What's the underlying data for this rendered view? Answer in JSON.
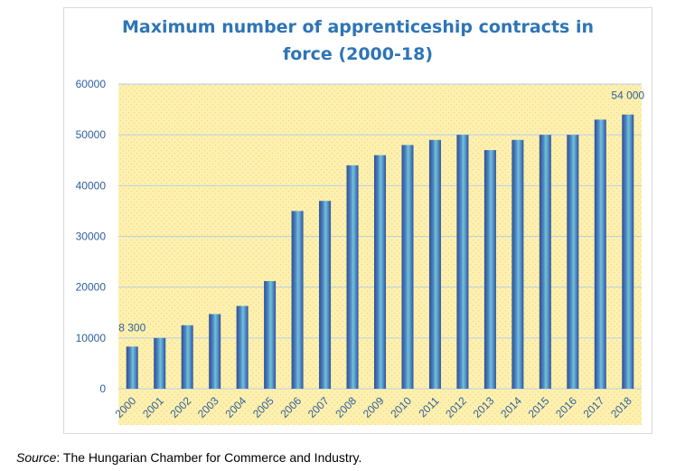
{
  "chart_data": {
    "type": "bar",
    "title_line1": "Maximum number of apprenticeship contracts in",
    "title_line2": "force (2000-18)",
    "categories": [
      "2000",
      "2001",
      "2002",
      "2003",
      "2004",
      "2005",
      "2006",
      "2007",
      "2008",
      "2009",
      "2010",
      "2011",
      "2012",
      "2013",
      "2014",
      "2015",
      "2016",
      "2017",
      "2018"
    ],
    "values": [
      8300,
      10000,
      12500,
      14700,
      16300,
      21200,
      35000,
      37000,
      44000,
      46000,
      48000,
      49000,
      50000,
      47000,
      49000,
      50000,
      50000,
      53000,
      54000
    ],
    "ylim": [
      0,
      60000
    ],
    "yticks": [
      "0",
      "10000",
      "20000",
      "30000",
      "40000",
      "50000",
      "60000"
    ],
    "data_labels": [
      {
        "index": 0,
        "text": "8 300"
      },
      {
        "index": 18,
        "text": "54 000"
      }
    ],
    "grid": true,
    "legend": "none",
    "colors": {
      "bar_dark": "#2f4f8f",
      "bar_mid": "#4f86c6",
      "bar_light": "#6fc3d6",
      "plot_bg": "#fdf0b0",
      "plot_dots": "#f2dc84",
      "grid": "#b8cfe6",
      "axis_text": "#2e5f9e",
      "title": "#2e75b6",
      "label_text": "#2e5f9e"
    }
  },
  "source": {
    "prefix": "Source",
    "text": ": The Hungarian Chamber for Commerce and Industry."
  }
}
